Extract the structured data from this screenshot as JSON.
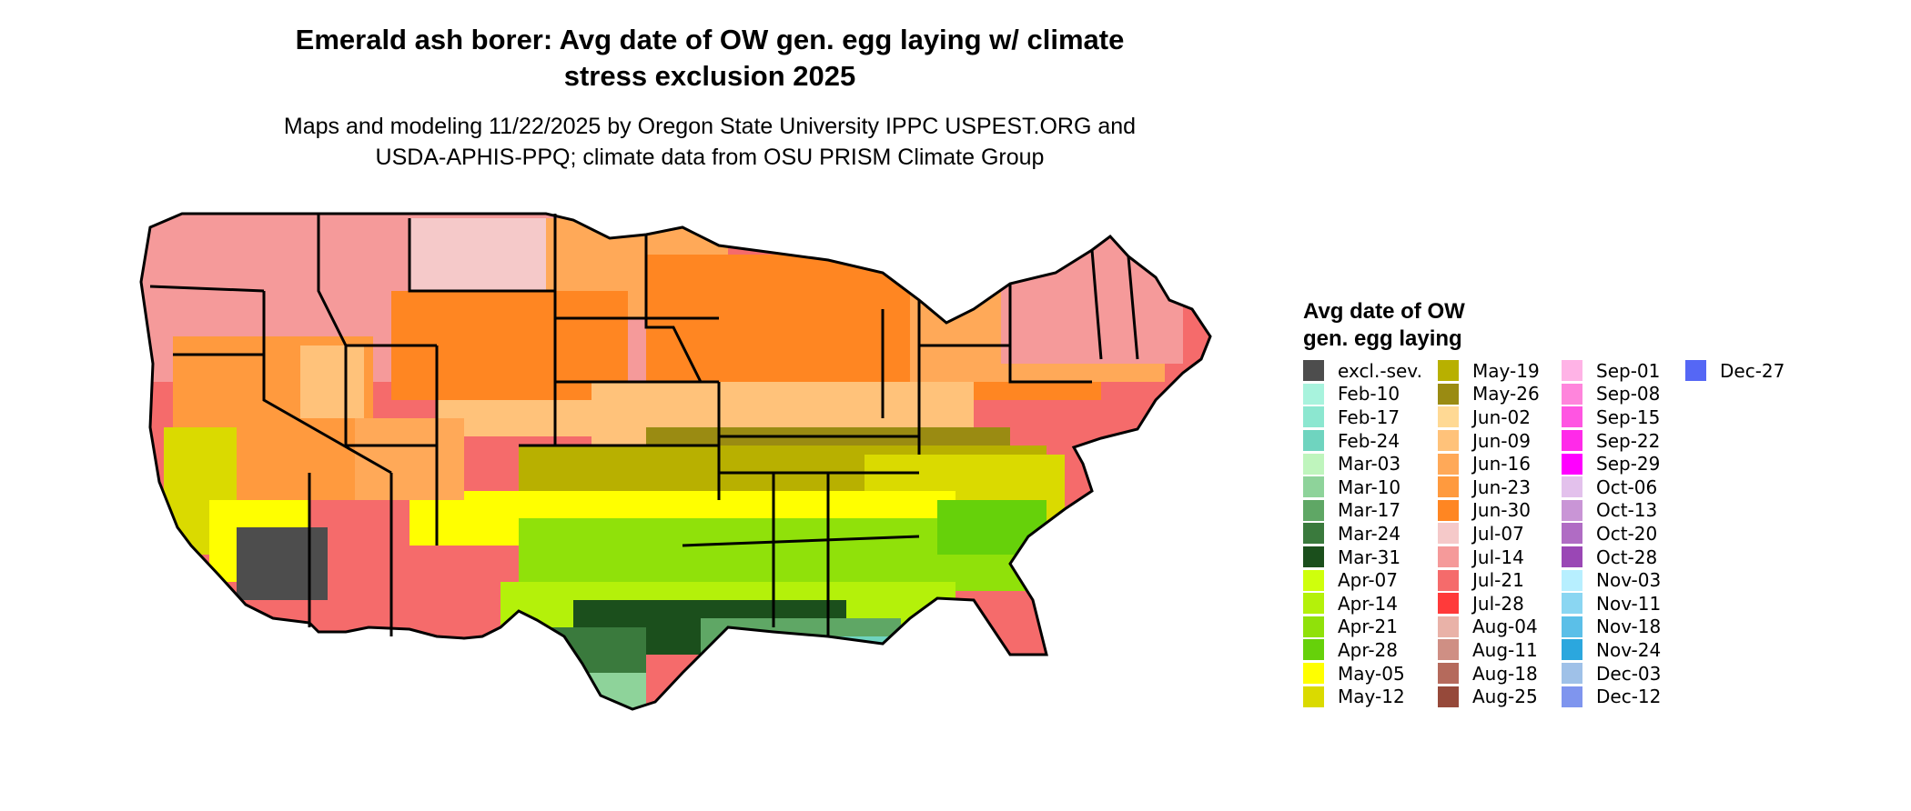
{
  "title": {
    "line1": "Emerald ash borer: Avg date of OW gen. egg laying w/ climate",
    "line2": "stress exclusion 2025"
  },
  "subtitle": {
    "line1": "Maps and modeling 11/22/2025 by Oregon State University IPPC USPEST.ORG and",
    "line2": "USDA-APHIS-PPQ; climate data from OSU PRISM Climate Group"
  },
  "legend": {
    "title_line1": "Avg date of OW",
    "title_line2": "gen. egg laying",
    "columns": [
      [
        {
          "label": "excl.-sev.",
          "color": "#4d4d4d"
        },
        {
          "label": "Feb-10",
          "color": "#a8f3dd"
        },
        {
          "label": "Feb-17",
          "color": "#8ce7d0"
        },
        {
          "label": "Feb-24",
          "color": "#6fd4bf"
        },
        {
          "label": "Mar-03",
          "color": "#bff5bd"
        },
        {
          "label": "Mar-10",
          "color": "#8ed39a"
        },
        {
          "label": "Mar-17",
          "color": "#5fa765"
        },
        {
          "label": "Mar-24",
          "color": "#3a7a3d"
        },
        {
          "label": "Mar-31",
          "color": "#1b4f1c"
        },
        {
          "label": "Apr-07",
          "color": "#cfff0c"
        },
        {
          "label": "Apr-14",
          "color": "#b4f10a"
        },
        {
          "label": "Apr-21",
          "color": "#90e10a"
        },
        {
          "label": "Apr-28",
          "color": "#66d10a"
        },
        {
          "label": "May-05",
          "color": "#ffff00"
        },
        {
          "label": "May-12",
          "color": "#dada00"
        }
      ],
      [
        {
          "label": "May-19",
          "color": "#b8b000"
        },
        {
          "label": "May-26",
          "color": "#9a8b12"
        },
        {
          "label": "Jun-02",
          "color": "#ffd994"
        },
        {
          "label": "Jun-09",
          "color": "#ffc27a"
        },
        {
          "label": "Jun-16",
          "color": "#ffa958"
        },
        {
          "label": "Jun-23",
          "color": "#ff9a3e"
        },
        {
          "label": "Jun-30",
          "color": "#ff8622"
        },
        {
          "label": "Jul-07",
          "color": "#f5c9c9"
        },
        {
          "label": "Jul-14",
          "color": "#f59a9a"
        },
        {
          "label": "Jul-21",
          "color": "#f56b6b"
        },
        {
          "label": "Jul-28",
          "color": "#ff3a3a"
        },
        {
          "label": "Aug-04",
          "color": "#e9b2a8"
        },
        {
          "label": "Aug-11",
          "color": "#cf8f84"
        },
        {
          "label": "Aug-18",
          "color": "#b56a5c"
        },
        {
          "label": "Aug-25",
          "color": "#96493a"
        }
      ],
      [
        {
          "label": "Sep-01",
          "color": "#ffb3e6"
        },
        {
          "label": "Sep-08",
          "color": "#ff85dc"
        },
        {
          "label": "Sep-15",
          "color": "#ff55e2"
        },
        {
          "label": "Sep-22",
          "color": "#ff2ae9"
        },
        {
          "label": "Sep-29",
          "color": "#ff00ff"
        },
        {
          "label": "Oct-06",
          "color": "#e3c1ec"
        },
        {
          "label": "Oct-13",
          "color": "#c995d6"
        },
        {
          "label": "Oct-20",
          "color": "#b06cc4"
        },
        {
          "label": "Oct-28",
          "color": "#9a47b5"
        },
        {
          "label": "Nov-03",
          "color": "#b7efff"
        },
        {
          "label": "Nov-11",
          "color": "#8ad6f2"
        },
        {
          "label": "Nov-18",
          "color": "#5bbfe8"
        },
        {
          "label": "Nov-24",
          "color": "#2ba7de"
        },
        {
          "label": "Dec-03",
          "color": "#9fc1e8"
        },
        {
          "label": "Dec-12",
          "color": "#7f95ee"
        }
      ],
      [
        {
          "label": "Dec-27",
          "color": "#5567f5"
        }
      ]
    ]
  }
}
